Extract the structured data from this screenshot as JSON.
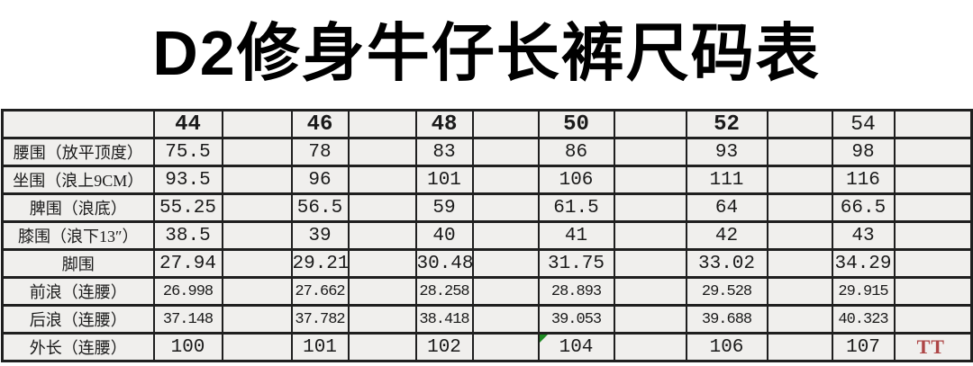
{
  "title": "D2修身牛仔长裤尺码表",
  "table": {
    "corner_label": "",
    "sizes": [
      "44",
      "46",
      "48",
      "50",
      "52",
      "54"
    ],
    "rows": [
      {
        "label": "腰围（放平顶度）",
        "values": [
          "75.5",
          "78",
          "83",
          "86",
          "93",
          "98"
        ]
      },
      {
        "label": "坐围（浪上9CM）",
        "values": [
          "93.5",
          "96",
          "101",
          "106",
          "111",
          "116"
        ]
      },
      {
        "label": "脾围（浪底）",
        "values": [
          "55.25",
          "56.5",
          "59",
          "61.5",
          "64",
          "66.5"
        ]
      },
      {
        "label": "膝围（浪下13″）",
        "values": [
          "38.5",
          "39",
          "40",
          "41",
          "42",
          "43"
        ]
      },
      {
        "label": "脚围",
        "values": [
          "27.94",
          "29.21",
          "30.48",
          "31.75",
          "33.02",
          "34.29"
        ]
      },
      {
        "label": "前浪（连腰）",
        "values": [
          "26.998",
          "27.662",
          "28.258",
          "28.893",
          "29.528",
          "29.915"
        ],
        "small": true
      },
      {
        "label": "后浪（连腰）",
        "values": [
          "37.148",
          "37.782",
          "38.418",
          "39.053",
          "39.688",
          "40.323"
        ],
        "small": true
      },
      {
        "label": "外长（连腰）",
        "values": [
          "100",
          "101",
          "102",
          "104",
          "106",
          "107"
        ]
      }
    ],
    "comment_marker": {
      "row_label": "外长（连腰）",
      "size": "50",
      "color": "#1f8b24"
    },
    "note_text": "TT",
    "note_color": "#ae4646"
  },
  "colors": {
    "cell_background": "#f0efed",
    "border": "#1f1f1f",
    "text": "#1a1a1a",
    "title": "#000000"
  }
}
